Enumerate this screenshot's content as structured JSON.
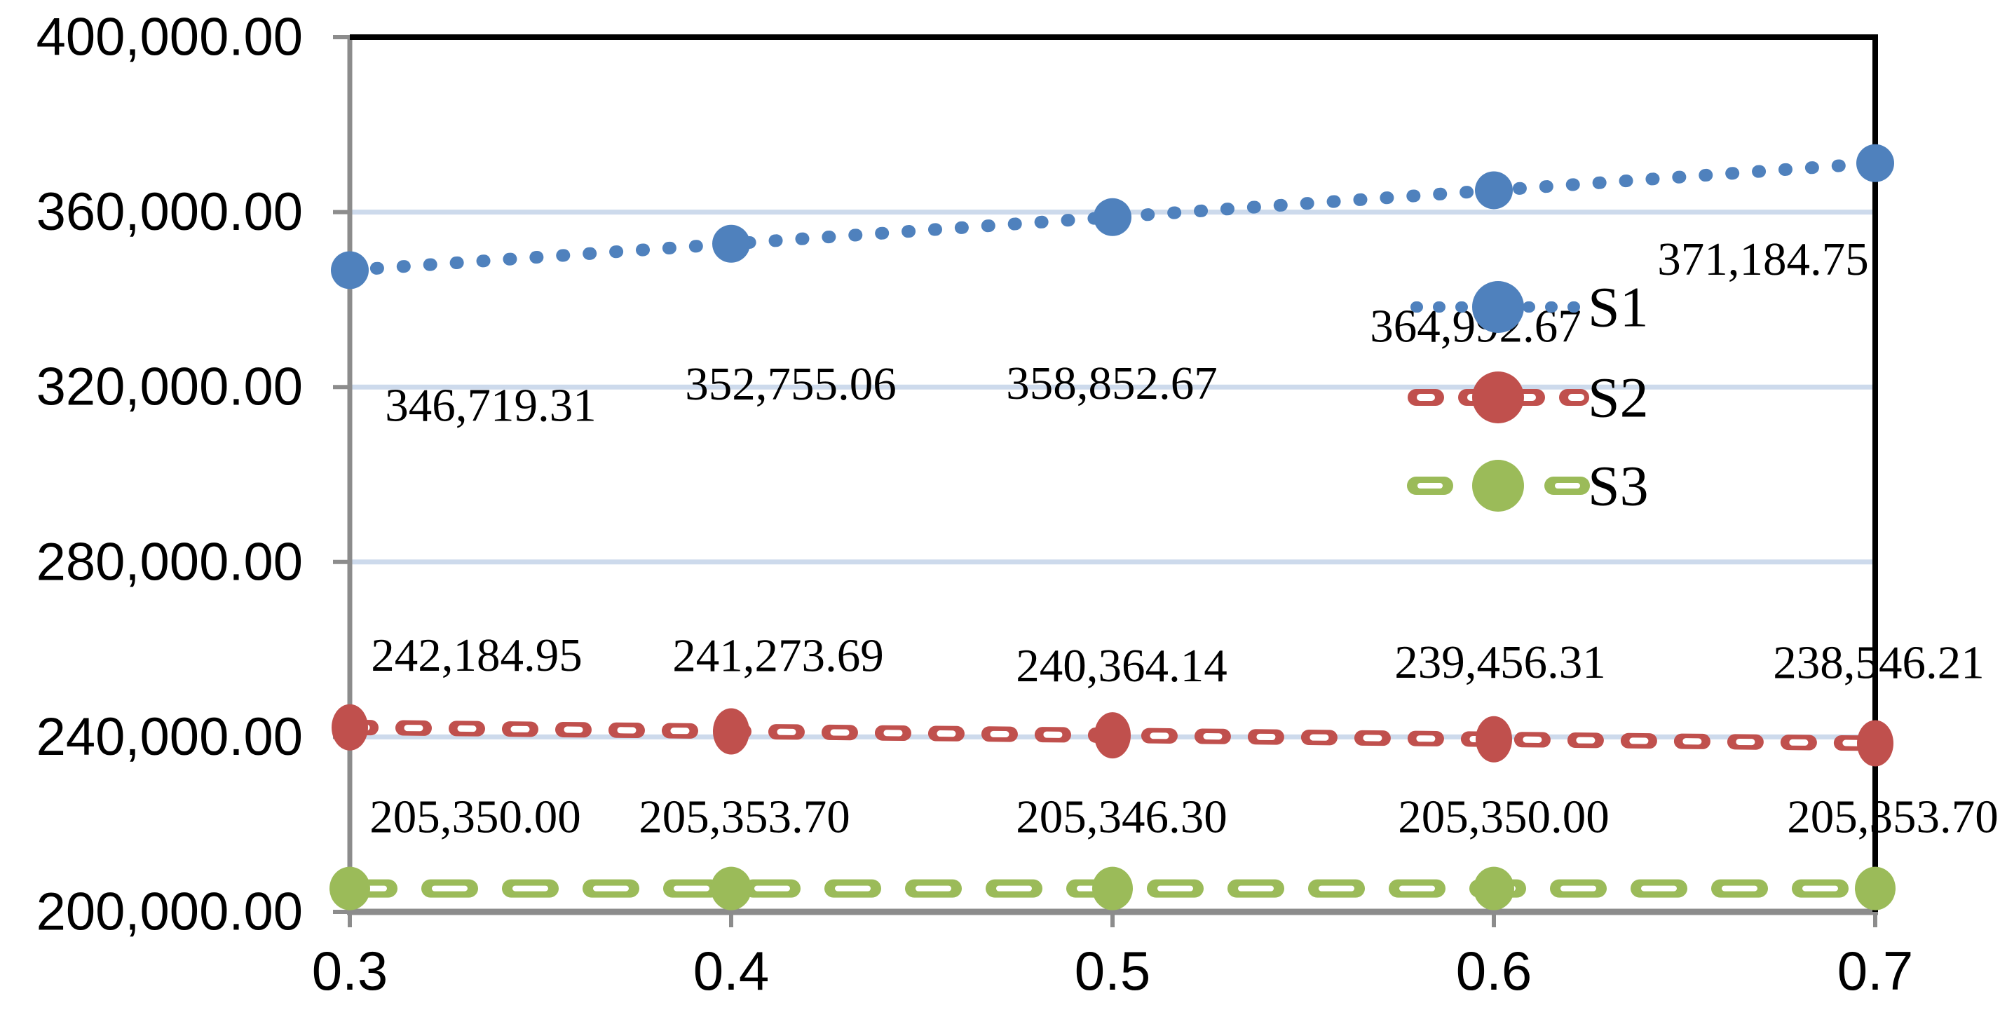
{
  "chart_data": {
    "type": "line",
    "title": "",
    "x": [
      0.3,
      0.4,
      0.5,
      0.6,
      0.7
    ],
    "x_tick_labels": [
      "0.3",
      "0.4",
      "0.5",
      "0.6",
      "0.7"
    ],
    "y_axis": {
      "min": 200000,
      "max": 400000,
      "step": 40000,
      "tick_labels": [
        "400,000.00",
        "360,000.00",
        "320,000.00",
        "280,000.00",
        "240,000.00",
        "200,000.00"
      ]
    },
    "grid": true,
    "legend_position": "inside-right",
    "series": [
      {
        "name": "S1",
        "style": "dotted",
        "color": "#4F81BD",
        "values": [
          346719.31,
          352755.06,
          358852.67,
          364992.67,
          371184.75
        ],
        "labels": [
          "346,719.31",
          "352,755.06",
          "358,852.67",
          "364,992.67",
          "371,184.75"
        ]
      },
      {
        "name": "S2",
        "style": "dashed-hollow",
        "color": "#C0504D",
        "values": [
          242184.95,
          241273.69,
          240364.14,
          239456.31,
          238546.21
        ],
        "labels": [
          "242,184.95",
          "241,273.69",
          "240,364.14",
          "239,456.31",
          "238,546.21"
        ]
      },
      {
        "name": "S3",
        "style": "dashed-striped",
        "color": "#9BBB59",
        "values": [
          205350.0,
          205353.7,
          205346.3,
          205350.0,
          205353.7
        ],
        "labels": [
          "205,350.00",
          "205,353.70",
          "205,346.30",
          "205,350.00",
          "205,353.70"
        ]
      }
    ],
    "colors": {
      "gridline": "#CDDAEC",
      "axis": "#8C8C8C",
      "border": "#000000",
      "text": "#000000",
      "background": "#FFFFFF"
    }
  }
}
